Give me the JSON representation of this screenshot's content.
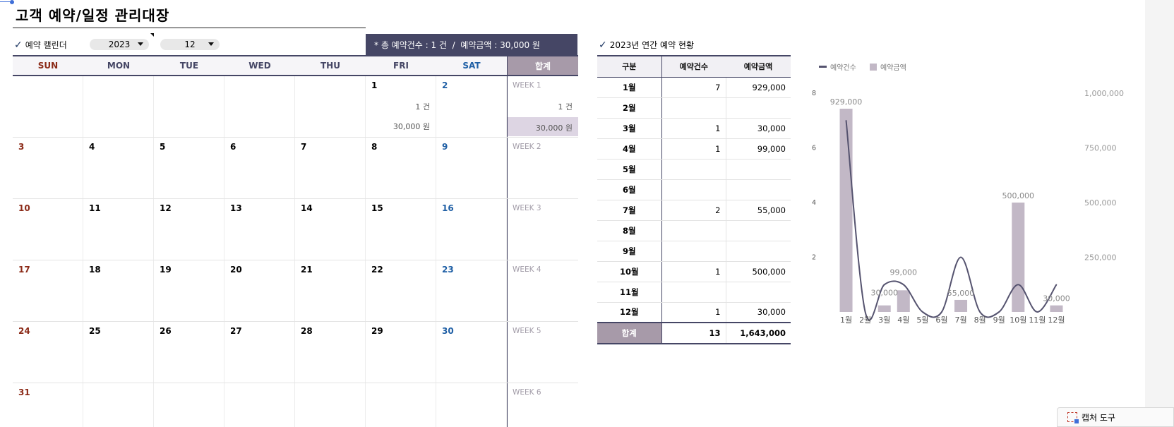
{
  "title": "고객 예약/일정 관리대장",
  "calendar": {
    "label": "예약 캘린더",
    "year": "2023",
    "month": "12",
    "summary": "* 총 예약건수 : 1 건  /  예약금액 : 30,000 원",
    "days_header": [
      "SUN",
      "MON",
      "TUE",
      "WED",
      "THU",
      "FRI",
      "SAT"
    ],
    "sum_header": "합계",
    "weeks": [
      {
        "label": "WEEK 1",
        "days": [
          "",
          "",
          "",
          "",
          "",
          "1",
          "2"
        ],
        "count_text": "1 건",
        "amount_text": "30,000 원"
      },
      {
        "label": "WEEK 2",
        "days": [
          "3",
          "4",
          "5",
          "6",
          "7",
          "8",
          "9"
        ],
        "count_text": "",
        "amount_text": ""
      },
      {
        "label": "WEEK 3",
        "days": [
          "10",
          "11",
          "12",
          "13",
          "14",
          "15",
          "16"
        ],
        "count_text": "",
        "amount_text": ""
      },
      {
        "label": "WEEK 4",
        "days": [
          "17",
          "18",
          "19",
          "20",
          "21",
          "22",
          "23"
        ],
        "count_text": "",
        "amount_text": ""
      },
      {
        "label": "WEEK 5",
        "days": [
          "24",
          "25",
          "26",
          "27",
          "28",
          "29",
          "30"
        ],
        "count_text": "",
        "amount_text": ""
      },
      {
        "label": "WEEK 6",
        "days": [
          "31",
          "",
          "",
          "",
          "",
          "",
          ""
        ],
        "count_text": "",
        "amount_text": ""
      }
    ],
    "day1_count": "1 건",
    "day1_amount": "30,000 원",
    "week1_sum_count": "1 건",
    "week1_sum_amount": "30,000 원"
  },
  "annual": {
    "label": "2023년 연간 예약 현황",
    "headers": [
      "구분",
      "예약건수",
      "예약금액"
    ],
    "rows": [
      {
        "month": "1월",
        "count": "7",
        "amount": "929,000"
      },
      {
        "month": "2월",
        "count": "",
        "amount": ""
      },
      {
        "month": "3월",
        "count": "1",
        "amount": "30,000"
      },
      {
        "month": "4월",
        "count": "1",
        "amount": "99,000"
      },
      {
        "month": "5월",
        "count": "",
        "amount": ""
      },
      {
        "month": "6월",
        "count": "",
        "amount": ""
      },
      {
        "month": "7월",
        "count": "2",
        "amount": "55,000"
      },
      {
        "month": "8월",
        "count": "",
        "amount": ""
      },
      {
        "month": "9월",
        "count": "",
        "amount": ""
      },
      {
        "month": "10월",
        "count": "1",
        "amount": "500,000"
      },
      {
        "month": "11월",
        "count": "",
        "amount": ""
      },
      {
        "month": "12월",
        "count": "1",
        "amount": "30,000"
      }
    ],
    "total": {
      "label": "합계",
      "count": "13",
      "amount": "1,643,000"
    }
  },
  "chart_data": {
    "type": "bar",
    "categories": [
      "1월",
      "2월",
      "3월",
      "4월",
      "5월",
      "6월",
      "7월",
      "8월",
      "9월",
      "10월",
      "11월",
      "12월"
    ],
    "series": [
      {
        "name": "예약건수",
        "kind": "line",
        "axis": "left",
        "values": [
          7,
          0,
          1,
          1,
          0,
          0,
          2,
          0,
          0,
          1,
          0,
          1
        ]
      },
      {
        "name": "예약금액",
        "kind": "bar",
        "axis": "right",
        "values": [
          929000,
          0,
          30000,
          99000,
          0,
          0,
          55000,
          0,
          0,
          500000,
          0,
          30000
        ]
      }
    ],
    "data_labels": [
      "929,000",
      "",
      "30,000",
      "99,000",
      "",
      "",
      "55,000",
      "",
      "",
      "500,000",
      "",
      "30,000"
    ],
    "y_left_ticks": [
      "2",
      "4",
      "6",
      "8"
    ],
    "y_left_range": [
      0,
      8
    ],
    "y_right_ticks": [
      "250,000",
      "500,000",
      "750,000",
      "1,000,000"
    ],
    "y_right_range": [
      0,
      1000000
    ],
    "legend_position": "top-left",
    "colors": {
      "line": "#55536f",
      "bar": "#c2b8c6"
    }
  },
  "taskbar": {
    "capture_tool": "캡처 도구"
  },
  "colors": {
    "accent": "#454665",
    "sum_header": "#a79aa9",
    "sunday": "#8b2a17",
    "saturday": "#1f5fa5"
  }
}
